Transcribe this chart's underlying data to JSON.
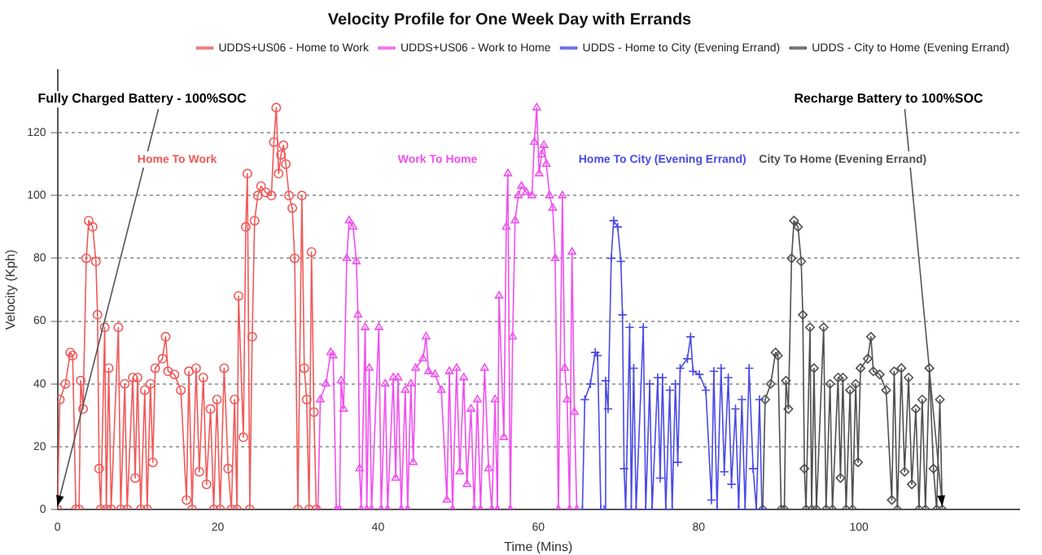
{
  "chart_data": {
    "type": "line",
    "title": "Velocity Profile for One Week Day with Errands",
    "xlabel": "Time (Mins)",
    "ylabel": "Velocity (Kph)",
    "xlim": [
      0,
      120
    ],
    "xticks": [
      0,
      20,
      40,
      60,
      80,
      100
    ],
    "ylim": [
      0,
      140
    ],
    "yticks": [
      0,
      20,
      40,
      60,
      80,
      100,
      120
    ],
    "grid": "y",
    "legend": "top right",
    "line_style": "solid",
    "series": [
      {
        "name": "UDDS+US06 - Home to Work",
        "color": "#f05a5a",
        "marker": "circle",
        "x": [
          0,
          0.3,
          1.0,
          1.6,
          1.9,
          2.3,
          2.7,
          2.9,
          3.2,
          3.6,
          3.9,
          4.4,
          4.8,
          5.0,
          5.2,
          5.4,
          5.9,
          6.1,
          6.4,
          6.7,
          7.6,
          7.9,
          8.4,
          8.7,
          9.4,
          9.7,
          10.0,
          10.4,
          10.9,
          11.2,
          11.6,
          11.9,
          12.2,
          13.1,
          13.5,
          13.8,
          14.6,
          15.4,
          16.1,
          16.4,
          16.8,
          17.3,
          17.7,
          18.2,
          18.6,
          19.1,
          19.5,
          19.9,
          20.3,
          20.8,
          21.3,
          21.7,
          22.1,
          22.4,
          22.6,
          23.2,
          23.5,
          23.7,
          24.0,
          24.3,
          24.6,
          25.0,
          25.4,
          26.0,
          26.7,
          27.0,
          27.3,
          27.6,
          27.9,
          28.2,
          28.5,
          28.9,
          29.3,
          29.6,
          30.0,
          30.5,
          30.8,
          31.1,
          31.4,
          31.7,
          32.0,
          32.3
        ],
        "values": [
          0,
          35,
          40,
          50,
          49,
          0,
          0,
          41,
          32,
          80,
          92,
          90,
          79,
          62,
          13,
          0,
          58,
          0,
          45,
          0,
          58,
          0,
          40,
          0,
          42,
          10,
          42,
          0,
          38,
          0,
          40,
          15,
          45,
          48,
          55,
          44,
          43,
          38,
          3,
          44,
          0,
          45,
          12,
          42,
          8,
          32,
          0,
          35,
          0,
          45,
          13,
          0,
          35,
          0,
          68,
          23,
          90,
          107,
          0,
          55,
          92,
          100,
          103,
          101,
          100,
          117,
          128,
          107,
          113,
          116,
          110,
          100,
          96,
          80,
          0,
          100,
          45,
          35,
          0,
          82,
          31,
          0
        ]
      },
      {
        "name": "UDDS+US06 - Work to Home",
        "color": "#f050f0",
        "marker": "triangle",
        "x": [
          32.5,
          32.8,
          33.5,
          34.1,
          34.4,
          34.8,
          35.2,
          35.4,
          35.7,
          36.1,
          36.4,
          36.9,
          37.3,
          37.5,
          37.7,
          37.9,
          38.4,
          38.6,
          38.9,
          39.2,
          40.1,
          40.4,
          40.9,
          41.2,
          41.9,
          42.2,
          42.5,
          42.9,
          43.4,
          43.7,
          44.1,
          44.4,
          44.7,
          45.6,
          46.0,
          46.3,
          47.1,
          47.9,
          48.6,
          48.9,
          49.3,
          49.8,
          50.2,
          50.7,
          51.1,
          51.6,
          52.0,
          52.4,
          52.8,
          53.3,
          53.8,
          54.2,
          54.6,
          54.9,
          55.1,
          55.7,
          56.0,
          56.2,
          56.5,
          56.8,
          57.1,
          57.5,
          57.9,
          58.5,
          59.2,
          59.5,
          59.8,
          60.1,
          60.4,
          60.7,
          61.0,
          61.4,
          61.8,
          62.1,
          62.5,
          63.0,
          63.3,
          63.6,
          63.9,
          64.2,
          64.5,
          64.8
        ],
        "values": [
          0,
          35,
          40,
          50,
          49,
          0,
          0,
          41,
          32,
          80,
          92,
          90,
          79,
          62,
          13,
          0,
          58,
          0,
          45,
          0,
          58,
          0,
          40,
          0,
          42,
          10,
          42,
          0,
          38,
          0,
          40,
          15,
          45,
          48,
          55,
          44,
          43,
          38,
          3,
          44,
          0,
          45,
          12,
          42,
          8,
          32,
          0,
          35,
          0,
          45,
          13,
          0,
          35,
          0,
          68,
          23,
          90,
          107,
          0,
          55,
          92,
          100,
          103,
          101,
          100,
          117,
          128,
          107,
          113,
          116,
          110,
          100,
          96,
          80,
          0,
          100,
          45,
          35,
          0,
          82,
          31,
          0
        ]
      },
      {
        "name": "UDDS - Home to City (Evening Errand)",
        "color": "#4a4ae6",
        "marker": "cross",
        "x": [
          65.5,
          65.8,
          66.5,
          67.1,
          67.4,
          67.8,
          68.2,
          68.4,
          68.7,
          69.1,
          69.4,
          69.9,
          70.3,
          70.5,
          70.7,
          70.9,
          71.4,
          71.6,
          71.9,
          72.2,
          73.1,
          73.4,
          73.9,
          74.2,
          74.9,
          75.2,
          75.5,
          75.9,
          76.4,
          76.7,
          77.1,
          77.4,
          77.7,
          78.6,
          79.0,
          79.3,
          80.1,
          80.9,
          81.6,
          81.9,
          82.3,
          82.8,
          83.2,
          83.7,
          84.1,
          84.6,
          85.0,
          85.4,
          85.8,
          86.3,
          86.8,
          87.2,
          87.6,
          87.9
        ],
        "values": [
          0,
          35,
          40,
          50,
          49,
          0,
          0,
          41,
          32,
          80,
          92,
          90,
          79,
          62,
          13,
          0,
          58,
          0,
          45,
          0,
          58,
          0,
          40,
          0,
          42,
          10,
          42,
          0,
          38,
          0,
          40,
          15,
          45,
          48,
          55,
          44,
          43,
          38,
          3,
          44,
          0,
          45,
          12,
          42,
          8,
          32,
          0,
          35,
          0,
          45,
          13,
          0,
          35,
          0
        ]
      },
      {
        "name": "UDDS - City to Home (Evening Errand)",
        "color": "#505050",
        "marker": "diamond",
        "x": [
          88,
          88.3,
          89.0,
          89.6,
          89.9,
          90.3,
          90.7,
          90.9,
          91.2,
          91.6,
          91.9,
          92.4,
          92.8,
          93.0,
          93.2,
          93.4,
          93.9,
          94.1,
          94.4,
          94.7,
          95.6,
          95.9,
          96.4,
          96.7,
          97.4,
          97.7,
          98.0,
          98.4,
          98.9,
          99.2,
          99.6,
          99.9,
          100.2,
          101.1,
          101.5,
          101.8,
          102.6,
          103.4,
          104.1,
          104.4,
          104.8,
          105.3,
          105.7,
          106.2,
          106.6,
          107.1,
          107.5,
          107.9,
          108.3,
          108.8,
          109.3,
          109.7,
          110.1,
          110.4
        ],
        "values": [
          0,
          35,
          40,
          50,
          49,
          0,
          0,
          41,
          32,
          80,
          92,
          90,
          79,
          62,
          13,
          0,
          58,
          0,
          45,
          0,
          58,
          0,
          40,
          0,
          42,
          10,
          42,
          0,
          38,
          0,
          40,
          15,
          45,
          48,
          55,
          44,
          43,
          38,
          3,
          44,
          0,
          45,
          12,
          42,
          8,
          32,
          0,
          35,
          0,
          45,
          13,
          0,
          35,
          0
        ]
      }
    ],
    "annotations": [
      {
        "text": "Fully Charged Battery - 100%SOC",
        "x": 0,
        "y": 0
      },
      "Home To Work",
      "Work To Home",
      "Home To City (Evening Errand)",
      "City To Home (Evening Errand)",
      {
        "text": "Recharge Battery to 100%SOC",
        "x": 110.4,
        "y": 0
      }
    ]
  }
}
